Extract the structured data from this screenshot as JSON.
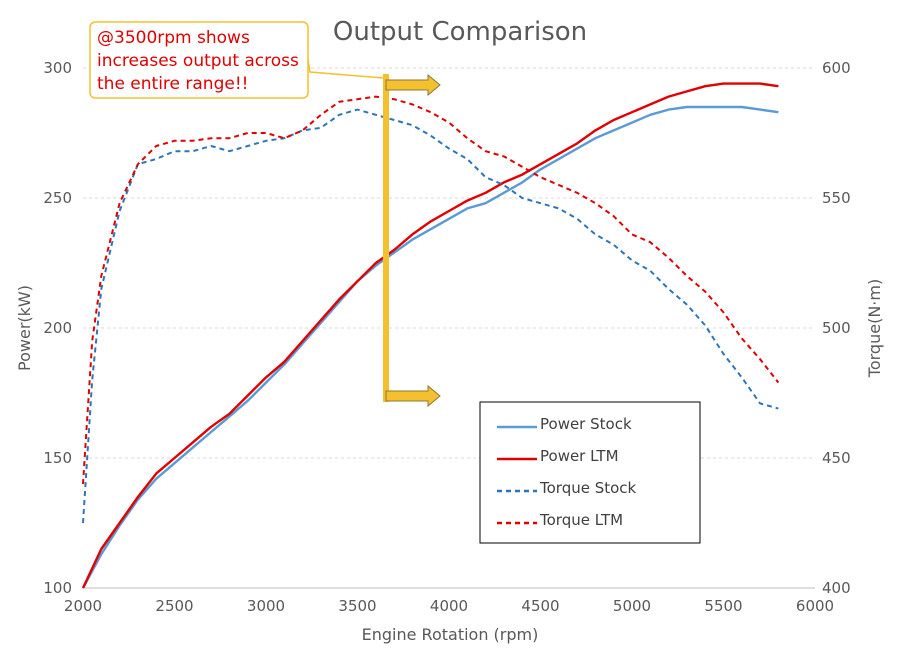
{
  "chart_data": {
    "type": "line",
    "title": "Output Comparison",
    "xlabel": "Engine Rotation (rpm)",
    "ylabel": "Power(kW)",
    "y2label": "Torque(N·m)",
    "xlim": [
      2000,
      6000
    ],
    "ylim": [
      100,
      300
    ],
    "y2lim": [
      400,
      600
    ],
    "x_ticks": [
      2000,
      2500,
      3000,
      3500,
      4000,
      4500,
      5000,
      5500,
      6000
    ],
    "y_ticks": [
      100,
      150,
      200,
      250,
      300
    ],
    "y2_ticks": [
      400,
      450,
      500,
      550,
      600
    ],
    "grid": "horizontal dashed",
    "legend_position": "bottom-right",
    "series": [
      {
        "name": "Power Stock",
        "axis": "left",
        "color": "#5b9bd5",
        "style": "solid",
        "x": [
          2000,
          2100,
          2200,
          2300,
          2400,
          2500,
          2600,
          2700,
          2800,
          2900,
          3000,
          3100,
          3200,
          3300,
          3400,
          3500,
          3600,
          3700,
          3800,
          3900,
          4000,
          4100,
          4200,
          4300,
          4400,
          4500,
          4600,
          4700,
          4800,
          4900,
          5000,
          5100,
          5200,
          5300,
          5400,
          5500,
          5600,
          5700,
          5800
        ],
        "values": [
          100,
          113,
          124,
          134,
          142,
          148,
          154,
          160,
          166,
          172,
          179,
          186,
          194,
          202,
          210,
          218,
          224,
          229,
          234,
          238,
          242,
          246,
          248,
          252,
          256,
          261,
          265,
          269,
          273,
          276,
          279,
          282,
          284,
          285,
          285,
          285,
          285,
          284,
          283
        ]
      },
      {
        "name": "Power LTM",
        "axis": "left",
        "color": "#e00000",
        "style": "solid",
        "x": [
          2000,
          2100,
          2200,
          2300,
          2400,
          2500,
          2600,
          2700,
          2800,
          2900,
          3000,
          3100,
          3200,
          3300,
          3400,
          3500,
          3600,
          3700,
          3800,
          3900,
          4000,
          4100,
          4200,
          4300,
          4400,
          4500,
          4600,
          4700,
          4800,
          4900,
          5000,
          5100,
          5200,
          5300,
          5400,
          5500,
          5600,
          5700,
          5800
        ],
        "values": [
          100,
          115,
          125,
          135,
          144,
          150,
          156,
          162,
          167,
          174,
          181,
          187,
          195,
          203,
          211,
          218,
          225,
          230,
          236,
          241,
          245,
          249,
          252,
          256,
          259,
          263,
          267,
          271,
          276,
          280,
          283,
          286,
          289,
          291,
          293,
          294,
          294,
          294,
          293
        ]
      },
      {
        "name": "Torque Stock",
        "axis": "right",
        "color": "#2e75b6",
        "style": "dashed",
        "x": [
          2000,
          2050,
          2100,
          2200,
          2300,
          2400,
          2500,
          2600,
          2700,
          2800,
          2900,
          3000,
          3100,
          3200,
          3300,
          3400,
          3500,
          3600,
          3700,
          3800,
          3900,
          4000,
          4100,
          4200,
          4300,
          4400,
          4500,
          4600,
          4700,
          4800,
          4900,
          5000,
          5100,
          5200,
          5300,
          5400,
          5500,
          5600,
          5700,
          5800
        ],
        "values": [
          425,
          480,
          515,
          545,
          563,
          565,
          568,
          568,
          570,
          568,
          570,
          572,
          573,
          576,
          577,
          582,
          584,
          582,
          580,
          578,
          574,
          569,
          565,
          558,
          555,
          550,
          548,
          546,
          542,
          536,
          532,
          526,
          522,
          515,
          509,
          501,
          490,
          481,
          471,
          469
        ]
      },
      {
        "name": "Torque LTM",
        "axis": "right",
        "color": "#e00000",
        "style": "dashed",
        "x": [
          2000,
          2050,
          2100,
          2200,
          2300,
          2400,
          2500,
          2600,
          2700,
          2800,
          2900,
          3000,
          3100,
          3200,
          3300,
          3400,
          3500,
          3600,
          3700,
          3800,
          3900,
          4000,
          4100,
          4200,
          4300,
          4400,
          4500,
          4600,
          4700,
          4800,
          4900,
          5000,
          5100,
          5200,
          5300,
          5400,
          5500,
          5600,
          5700,
          5800
        ],
        "values": [
          440,
          495,
          520,
          548,
          563,
          570,
          572,
          572,
          573,
          573,
          575,
          575,
          573,
          576,
          582,
          587,
          588,
          589,
          588,
          586,
          583,
          579,
          573,
          568,
          566,
          562,
          558,
          555,
          552,
          548,
          543,
          536,
          533,
          527,
          520,
          514,
          506,
          496,
          488,
          479
        ]
      }
    ],
    "annotation": {
      "text": "@3500rpm shows increases output across the entire range!!",
      "lines": [
        "@3500rpm shows",
        "increases output across",
        "the entire range!!"
      ],
      "color": "#e00000",
      "border_color": "#f5c02e"
    }
  }
}
